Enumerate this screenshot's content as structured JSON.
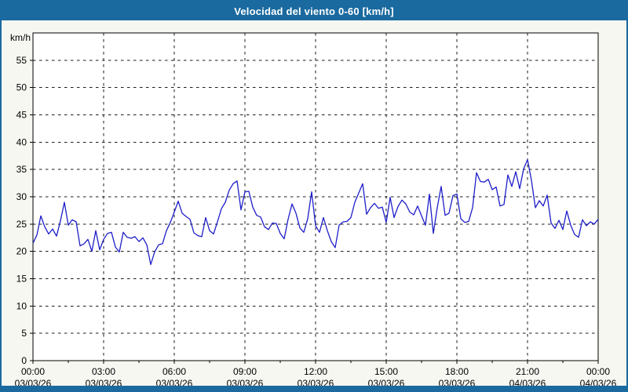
{
  "header": {
    "title": "Velocidad del viento 0-60 [km/h]"
  },
  "colors": {
    "title_bar": "#1a6a9f",
    "window_background": "#f7f7f2",
    "plot_background": "#ffffff",
    "grid": "#1a1a1a",
    "line": "#1e1ec8"
  },
  "chart_data": {
    "type": "line",
    "title": "Velocidad del viento 0-60 [km/h]",
    "xlabel": "",
    "ylabel": "km/h",
    "ylim": [
      0,
      60
    ],
    "xlim_hours": [
      0,
      24
    ],
    "grid": "dashed",
    "legend": "none",
    "line_color": "#1e1ec8",
    "y_ticks": [
      0,
      5,
      10,
      15,
      20,
      25,
      30,
      35,
      40,
      45,
      50,
      55
    ],
    "x_ticks": [
      {
        "hour": 0,
        "time": "00:00",
        "date": "03/03/26"
      },
      {
        "hour": 3,
        "time": "03:00",
        "date": "03/03/26"
      },
      {
        "hour": 6,
        "time": "06:00",
        "date": "03/03/26"
      },
      {
        "hour": 9,
        "time": "09:00",
        "date": "03/03/26"
      },
      {
        "hour": 12,
        "time": "12:00",
        "date": "03/03/26"
      },
      {
        "hour": 15,
        "time": "15:00",
        "date": "03/03/26"
      },
      {
        "hour": 18,
        "time": "18:00",
        "date": "03/03/26"
      },
      {
        "hour": 21,
        "time": "21:00",
        "date": "04/03/26"
      },
      {
        "hour": 24,
        "time": "00:00",
        "date": "04/03/26"
      }
    ],
    "series": [
      {
        "name": "Velocidad del viento [km/h]",
        "start_hour": 0,
        "interval_minutes": 10,
        "values": [
          21.5,
          23.0,
          26.5,
          24.5,
          23.2,
          24.1,
          22.8,
          25.6,
          29.0,
          24.8,
          25.8,
          25.4,
          21.0,
          21.4,
          22.2,
          20.0,
          23.8,
          20.3,
          22.2,
          23.3,
          23.5,
          20.8,
          19.9,
          23.5,
          22.6,
          22.4,
          22.7,
          21.8,
          22.5,
          21.2,
          17.6,
          19.9,
          21.2,
          21.4,
          23.8,
          25.3,
          27.2,
          29.2,
          27.0,
          26.4,
          25.9,
          23.4,
          22.9,
          22.7,
          26.2,
          23.8,
          23.2,
          25.4,
          27.8,
          29.0,
          31.2,
          32.4,
          32.9,
          27.6,
          30.9,
          31.0,
          28.1,
          26.6,
          26.3,
          24.5,
          24.0,
          25.2,
          25.1,
          23.3,
          22.3,
          25.9,
          28.7,
          27.0,
          24.3,
          23.5,
          26.0,
          30.9,
          24.7,
          23.5,
          26.2,
          23.8,
          21.8,
          20.7,
          24.8,
          25.4,
          25.5,
          26.2,
          29.0,
          30.7,
          32.4,
          26.8,
          28.0,
          28.8,
          27.9,
          28.1,
          25.3,
          29.9,
          26.2,
          28.2,
          29.4,
          28.7,
          27.2,
          26.7,
          28.3,
          26.5,
          24.8,
          30.5,
          23.3,
          28.0,
          31.9,
          26.6,
          27.0,
          30.2,
          30.5,
          26.0,
          25.3,
          25.5,
          28.0,
          34.4,
          32.8,
          32.7,
          33.2,
          31.3,
          31.8,
          28.3,
          28.6,
          34.0,
          31.9,
          34.6,
          31.5,
          35.1,
          36.8,
          33.0,
          28.0,
          29.3,
          28.3,
          30.3,
          25.2,
          24.2,
          25.7,
          24.0,
          27.4,
          24.8,
          23.1,
          22.6,
          25.8,
          24.7,
          25.4,
          25.0,
          25.9
        ]
      }
    ]
  }
}
